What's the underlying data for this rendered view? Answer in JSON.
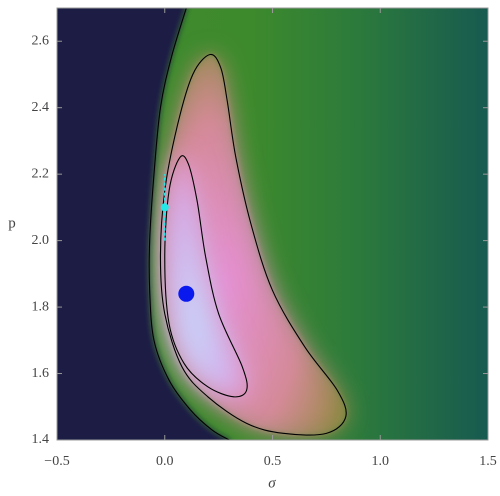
{
  "chart_data": {
    "type": "density",
    "x_label": "σ",
    "y_label": "p",
    "xlim": [
      -0.5,
      1.5
    ],
    "ylim": [
      1.4,
      2.7
    ],
    "xticks": [
      {
        "value": -0.5,
        "label": "−0.5"
      },
      {
        "value": 0,
        "label": "0.0"
      },
      {
        "value": 0.5,
        "label": "0.5"
      },
      {
        "value": 1,
        "label": "1.0"
      },
      1.5
    ],
    "yticks": [
      1.4,
      1.6,
      1.8,
      {
        "value": 2,
        "label": "2.0"
      },
      2.2,
      2.4,
      2.6
    ],
    "contours": [
      {
        "closed": false,
        "x": [
          0.1,
          0.03,
          -0.02,
          -0.05,
          -0.07,
          -0.07,
          -0.05,
          0.02,
          0.12,
          0.22,
          0.3
        ],
        "y": [
          2.7,
          2.55,
          2.4,
          2.2,
          2.0,
          1.85,
          1.7,
          1.58,
          1.49,
          1.43,
          1.4
        ]
      },
      {
        "closed": true,
        "x": [
          0.21,
          0.26,
          0.29,
          0.33,
          0.4,
          0.5,
          0.65,
          0.8,
          0.84,
          0.75,
          0.55,
          0.38,
          0.2,
          0.08,
          0.0,
          -0.02,
          0.0,
          0.06,
          0.13
        ],
        "y": [
          2.56,
          2.52,
          2.42,
          2.25,
          2.05,
          1.85,
          1.68,
          1.55,
          1.47,
          1.42,
          1.42,
          1.45,
          1.53,
          1.62,
          1.78,
          1.95,
          2.15,
          2.35,
          2.5
        ]
      },
      {
        "closed": true,
        "x": [
          0.07,
          0.11,
          0.15,
          0.19,
          0.25,
          0.36,
          0.38,
          0.32,
          0.2,
          0.09,
          0.02,
          0.0,
          0.02
        ],
        "y": [
          2.25,
          2.23,
          2.12,
          1.95,
          1.78,
          1.62,
          1.55,
          1.53,
          1.56,
          1.63,
          1.75,
          1.95,
          2.15
        ]
      }
    ],
    "points": [
      {
        "x": 0.1,
        "y": 1.84,
        "color": "#0a1aee",
        "size": 8
      },
      {
        "x": 0,
        "y": 2.1,
        "y_low": 2.0,
        "y_high": 2.2,
        "color": "#22e8e8",
        "size": 4
      }
    ]
  }
}
